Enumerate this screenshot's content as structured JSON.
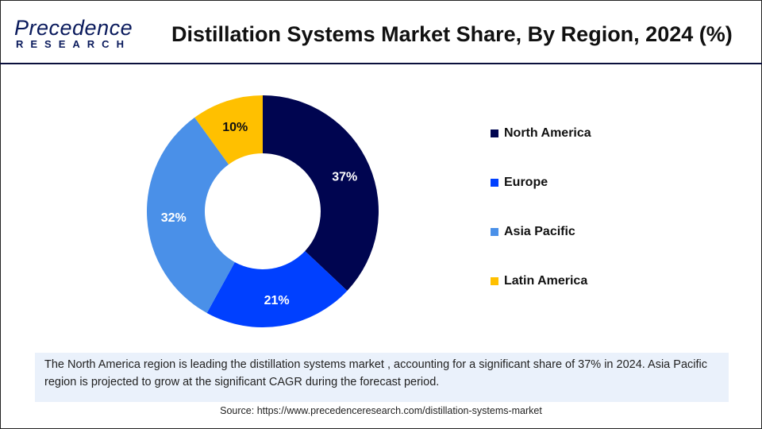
{
  "header": {
    "logo_top": "Precedence",
    "logo_bottom": "RESEARCH",
    "title": "Distillation Systems Market Share, By Region, 2024 (%)"
  },
  "chart_data": {
    "type": "pie",
    "donut": true,
    "categories": [
      "North America",
      "Europe",
      "Asia Pacific",
      "Latin America"
    ],
    "values": [
      37,
      21,
      32,
      10
    ],
    "labels": [
      "37%",
      "21%",
      "32%",
      "10%"
    ],
    "colors": [
      "#000550",
      "#0040ff",
      "#4a90e8",
      "#ffc000"
    ],
    "label_colors": [
      "#ffffff",
      "#ffffff",
      "#ffffff",
      "#111111"
    ],
    "legend_position": "right"
  },
  "note": "The North America region is leading the distillation systems market , accounting for a significant share of 37% in 2024. Asia Pacific region is projected to grow at the significant CAGR during the forecast period.",
  "source": "Source: https://www.precedenceresearch.com/distillation-systems-market"
}
